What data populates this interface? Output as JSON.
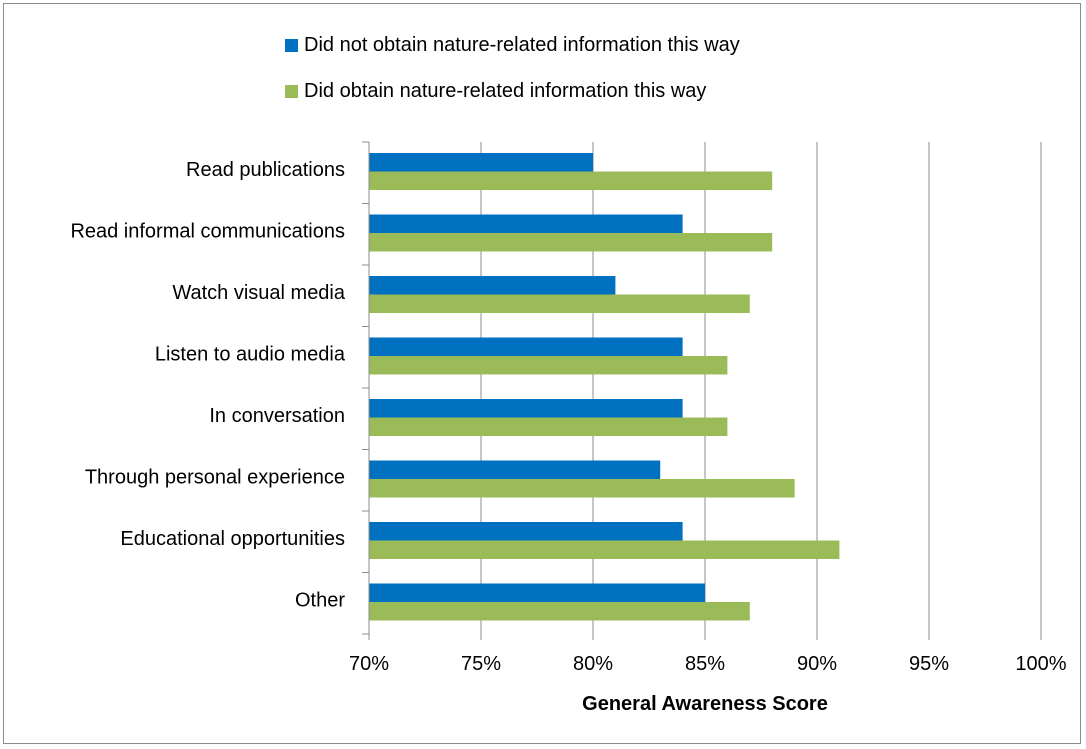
{
  "chart_data": {
    "type": "bar",
    "orientation": "horizontal",
    "categories": [
      "Read publications",
      "Read informal communications",
      "Watch visual media",
      "Listen to audio media",
      "In conversation",
      "Through personal experience",
      "Educational opportunities",
      "Other"
    ],
    "series": [
      {
        "name": "Did not obtain nature-related information this way",
        "color": "#0070c0",
        "values": [
          80,
          84,
          81,
          84,
          84,
          83,
          84,
          85
        ]
      },
      {
        "name": "Did obtain nature-related information this way",
        "color": "#9bbb59",
        "values": [
          88,
          88,
          87,
          86,
          86,
          89,
          91,
          87
        ]
      }
    ],
    "xlabel": "General Awareness Score",
    "xlim": [
      70,
      100
    ],
    "xticks": [
      70,
      75,
      80,
      85,
      90,
      95,
      100
    ],
    "xtick_labels": [
      "70%",
      "75%",
      "80%",
      "85%",
      "90%",
      "95%",
      "100%"
    ],
    "grid": "vertical",
    "legend_position": "top"
  }
}
